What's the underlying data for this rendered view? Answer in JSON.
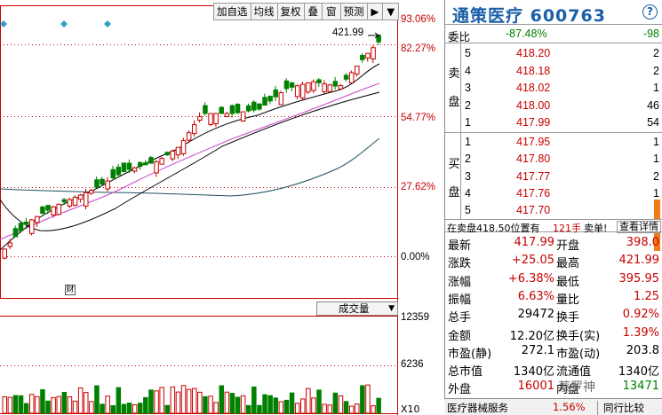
{
  "toolbar": {
    "items": [
      "加自选",
      "均线",
      "复权",
      "叠",
      "窗",
      "预测",
      "▶",
      "▼"
    ]
  },
  "chart": {
    "pct_labels": [
      "93.06%",
      "82.27%",
      "54.77%",
      "27.62%",
      "0.00%"
    ],
    "high_label": "421.99",
    "cai_badge": "财",
    "volume_header": "成交量",
    "volume_labels": [
      "12359",
      "6236"
    ],
    "x_multiplier": "X10"
  },
  "colors": {
    "up": "#c80000",
    "down": "#008000",
    "title": "#1a5fa8",
    "ma5": "#000000",
    "ma10": "#cc44cc",
    "ma30": "#1f4f5f",
    "accent_scroll": "#f07d1a"
  },
  "quote": {
    "title": "通策医疗 600763",
    "help": "?",
    "weibi": {
      "label": "委比",
      "value": "-87.48%",
      "diff": "-98"
    },
    "sell_label": [
      "卖",
      "盘"
    ],
    "buy_label": [
      "买",
      "盘"
    ],
    "sell": [
      {
        "level": "5",
        "price": "418.20",
        "vol": "2"
      },
      {
        "level": "4",
        "price": "418.18",
        "vol": "2"
      },
      {
        "level": "3",
        "price": "418.02",
        "vol": "1"
      },
      {
        "level": "2",
        "price": "418.00",
        "vol": "46"
      },
      {
        "level": "1",
        "price": "417.99",
        "vol": "54"
      }
    ],
    "buy": [
      {
        "level": "1",
        "price": "417.95",
        "vol": "1"
      },
      {
        "level": "2",
        "price": "417.80",
        "vol": "1"
      },
      {
        "level": "3",
        "price": "417.77",
        "vol": "2"
      },
      {
        "level": "4",
        "price": "417.76",
        "vol": "1"
      },
      {
        "level": "5",
        "price": "417.70",
        "vol": ""
      }
    ],
    "mid": {
      "text1": "在卖盘418.50位置有",
      "text2": "121手",
      "text3": "卖单!",
      "button": "查看详情"
    },
    "stats": [
      {
        "l1": "最新",
        "v1": "417.99",
        "c1": "red",
        "l2": "开盘",
        "v2": "398.0",
        "c2": "red"
      },
      {
        "l1": "涨跌",
        "v1": "+25.05",
        "c1": "red",
        "l2": "最高",
        "v2": "421.99",
        "c2": "red"
      },
      {
        "l1": "涨幅",
        "v1": "+6.38%",
        "c1": "red",
        "l2": "最低",
        "v2": "395.95",
        "c2": "red"
      },
      {
        "l1": "振幅",
        "v1": "6.63%",
        "c1": "red",
        "l2": "量比",
        "v2": "1.25",
        "c2": "red"
      },
      {
        "l1": "总手",
        "v1": "29472",
        "c1": "blk",
        "l2": "换手",
        "v2": "0.92%",
        "c2": "red"
      },
      {
        "l1": "金额",
        "v1": "12.20亿",
        "c1": "blk",
        "l2": "换手(实)",
        "v2": "1.39%",
        "c2": "red"
      },
      {
        "l1": "市盈(静)",
        "v1": "272.1",
        "c1": "blk",
        "l2": "市盈(动)",
        "v2": "203.8",
        "c2": "blk"
      },
      {
        "l1": "总市值",
        "v1": "1340亿",
        "c1": "blk",
        "l2": "流通值",
        "v2": "1340亿",
        "c2": "blk"
      },
      {
        "l1": "外盘",
        "v1": "16001",
        "c1": "red",
        "l2": "内盘",
        "v2": "13471",
        "c2": "green"
      }
    ],
    "watermark": "蔡罗神",
    "footer": {
      "sector": "医疗器械服务",
      "sector_pct": "1.56%",
      "compare": "同行比较"
    }
  }
}
